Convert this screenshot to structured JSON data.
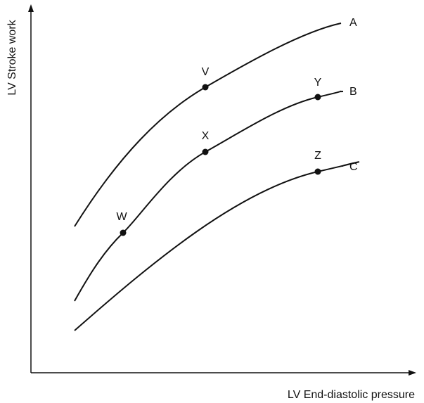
{
  "axes": {
    "x_label": "LV End-diastolic pressure",
    "y_label": "LV Stroke work"
  },
  "curves": [
    {
      "label": "A"
    },
    {
      "label": "B"
    },
    {
      "label": "C"
    }
  ],
  "points": [
    {
      "label": "V"
    },
    {
      "label": "W"
    },
    {
      "label": "X"
    },
    {
      "label": "Y"
    },
    {
      "label": "Z"
    }
  ]
}
